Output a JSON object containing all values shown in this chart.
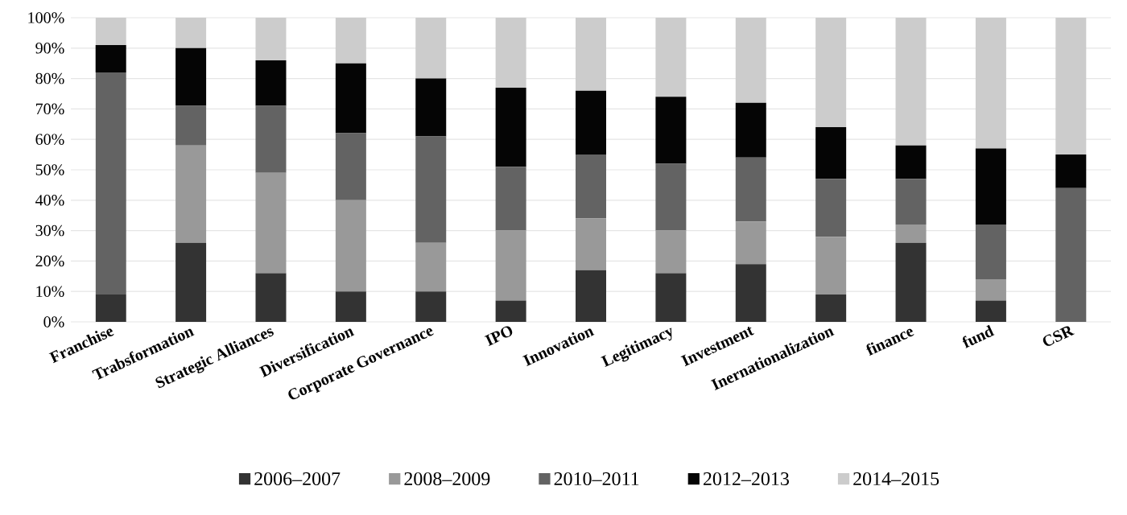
{
  "chart_data": {
    "type": "bar",
    "stacked": true,
    "categories": [
      "Franchise",
      "Trabsformation",
      "Strategic Alliances",
      "Diversification",
      "Corporate Governance",
      "IPO",
      "Innovation",
      "Legitimacy",
      "Investment",
      "Inernationalization",
      "finance",
      "fund",
      "CSR"
    ],
    "series": [
      {
        "name": "2006–2007",
        "color": "#333333",
        "values": [
          9,
          26,
          16,
          10,
          10,
          7,
          17,
          16,
          19,
          9,
          26,
          7,
          0
        ]
      },
      {
        "name": "2008–2009",
        "color": "#999999",
        "values": [
          0,
          32,
          33,
          30,
          16,
          23,
          17,
          14,
          14,
          19,
          6,
          7,
          0
        ]
      },
      {
        "name": "2010–2011",
        "color": "#636363",
        "values": [
          73,
          13,
          22,
          22,
          35,
          21,
          21,
          22,
          21,
          19,
          15,
          18,
          44
        ]
      },
      {
        "name": "2012–2013",
        "color": "#050505",
        "values": [
          9,
          19,
          15,
          23,
          19,
          26,
          21,
          22,
          18,
          17,
          11,
          25,
          11
        ]
      },
      {
        "name": "2014–2015",
        "color": "#cccccc",
        "values": [
          9,
          10,
          14,
          15,
          20,
          23,
          24,
          26,
          28,
          36,
          42,
          43,
          45
        ]
      }
    ],
    "ylim": [
      0,
      100
    ],
    "yticks": [
      {
        "value": 0,
        "label": "0%"
      },
      {
        "value": 10,
        "label": "10%"
      },
      {
        "value": 20,
        "label": "20%"
      },
      {
        "value": 30,
        "label": "30%"
      },
      {
        "value": 40,
        "label": "40%"
      },
      {
        "value": 50,
        "label": "50%"
      },
      {
        "value": 60,
        "label": "60%"
      },
      {
        "value": 70,
        "label": "70%"
      },
      {
        "value": 80,
        "label": "80%"
      },
      {
        "value": 90,
        "label": "90%"
      },
      {
        "value": 100,
        "label": "100%"
      }
    ],
    "grid": "y",
    "legend": "bottom"
  }
}
